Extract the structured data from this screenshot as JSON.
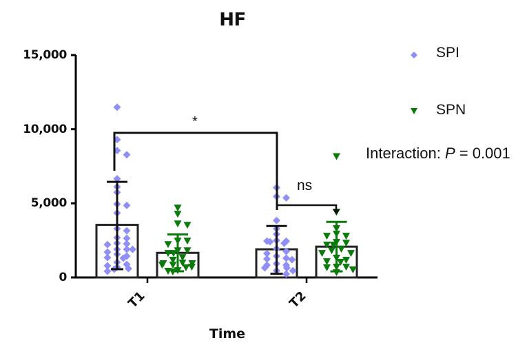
{
  "chart_data": {
    "type": "bar",
    "subtype": "bar-with-scatter-and-error-bars",
    "title": "HF",
    "xlabel": "Time",
    "ylabel": "",
    "categories": [
      "T1",
      "T2"
    ],
    "ylim": [
      0,
      15000
    ],
    "yticks": [
      0,
      5000,
      10000,
      15000
    ],
    "ytick_labels": [
      "0",
      "5,000",
      "10,000",
      "15,000"
    ],
    "grid": false,
    "legend_position": "right",
    "series": [
      {
        "name": "SPI",
        "marker": "diamond",
        "color": "#8f8ff5",
        "means": [
          3550,
          1900
        ],
        "error_upper": [
          6450,
          3470
        ],
        "error_lower": [
          560,
          250
        ],
        "points": [
          [
            11480,
            9300,
            8560,
            8280,
            6660,
            6110,
            5740,
            4950,
            4860,
            4350,
            3290,
            3150,
            2690,
            2640,
            2310,
            2270,
            2220,
            1900,
            1900,
            1900,
            1710,
            1570,
            1440,
            1340,
            1300,
            1020,
            880,
            790,
            690,
            600,
            560,
            420
          ],
          [
            6060,
            5460,
            5370,
            3840,
            3290,
            2920,
            2500,
            2450,
            2450,
            2410,
            2310,
            1940,
            1760,
            1620,
            1440,
            1300,
            1250,
            1200,
            930,
            830,
            830,
            650,
            650,
            460,
            460,
            230
          ]
        ]
      },
      {
        "name": "SPN",
        "marker": "triangle-down",
        "color": "#0a7a0a",
        "means": [
          1660,
          2080
        ],
        "error_upper": [
          2900,
          3750
        ],
        "error_lower": [
          420,
          410
        ],
        "points": [
          [
            4680,
            4260,
            3610,
            3520,
            2450,
            2450,
            2220,
            1800,
            1800,
            1620,
            1620,
            1340,
            1160,
            970,
            930,
            930,
            830,
            830,
            690,
            650,
            460,
            420,
            370
          ],
          [
            8150,
            4400,
            3290,
            2920,
            2780,
            2780,
            2360,
            2310,
            2180,
            2180,
            1900,
            1800,
            1620,
            1620,
            1300,
            1160,
            1060,
            1020,
            690,
            690,
            650,
            510,
            320
          ]
        ]
      }
    ],
    "annotations": [
      {
        "text": "*",
        "between": "SPI T1 vs SPI T2"
      },
      {
        "text": "ns",
        "between": "SPI T2 vs SPN T2"
      },
      {
        "text": "Interaction: P = 0.001"
      }
    ]
  },
  "labels": {
    "title": "HF",
    "xlabel": "Time",
    "yticks": [
      "15,000",
      "10,000",
      "5,000",
      "0"
    ],
    "xticks": [
      "T1",
      "T2"
    ],
    "legend": {
      "spi": "SPI",
      "spn": "SPN"
    },
    "sig_star": "*",
    "sig_ns": "ns",
    "interaction_prefix": "Interaction: ",
    "interaction_p": "P",
    "interaction_suffix": " = 0.001"
  },
  "colors": {
    "spi": "#8f8ff5",
    "spn": "#0a7a0a",
    "axis": "#000000"
  }
}
